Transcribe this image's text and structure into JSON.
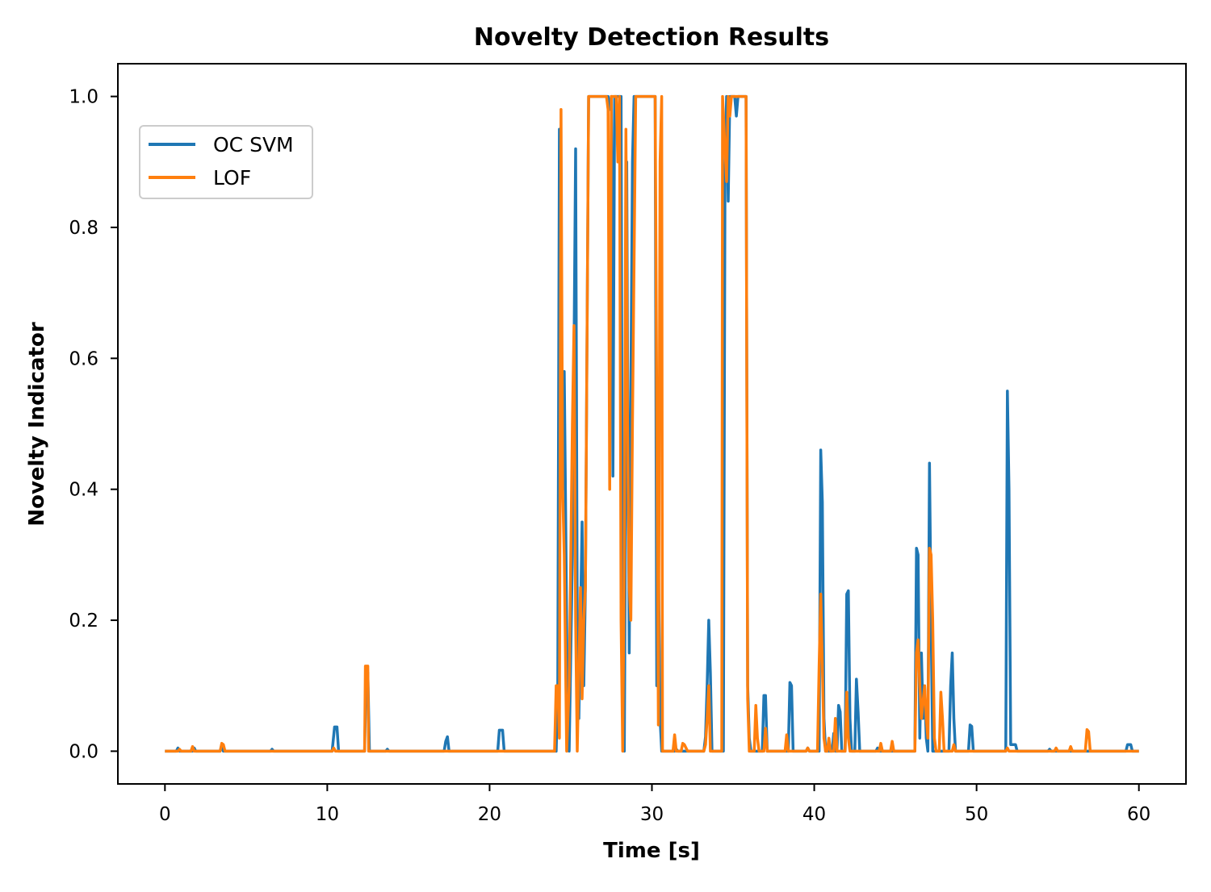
{
  "chart_data": {
    "type": "line",
    "title": "Novelty Detection Results",
    "xlabel": "Time [s]",
    "ylabel": "Novelty Indicator",
    "xlim": [
      -2.9,
      62.9
    ],
    "ylim": [
      -0.05,
      1.05
    ],
    "xticks": [
      0,
      10,
      20,
      30,
      40,
      50,
      60
    ],
    "yticks": [
      0.0,
      0.2,
      0.4,
      0.6,
      0.8,
      1.0
    ],
    "xtick_labels": [
      "0",
      "10",
      "20",
      "30",
      "40",
      "50",
      "60"
    ],
    "ytick_labels": [
      "0.0",
      "0.2",
      "0.4",
      "0.6",
      "0.8",
      "1.0"
    ],
    "grid": false,
    "legend_position": "upper-left",
    "series": [
      {
        "name": "OC SVM",
        "color": "#1f77b4",
        "points": [
          [
            0,
            0
          ],
          [
            0.7,
            0
          ],
          [
            0.8,
            0.005
          ],
          [
            0.9,
            0
          ],
          [
            1.7,
            0
          ],
          [
            1.8,
            0.005
          ],
          [
            1.9,
            0
          ],
          [
            3.4,
            0
          ],
          [
            3.5,
            0.01
          ],
          [
            3.6,
            0
          ],
          [
            6.5,
            0
          ],
          [
            6.6,
            0.003
          ],
          [
            6.7,
            0
          ],
          [
            10.3,
            0
          ],
          [
            10.45,
            0.037
          ],
          [
            10.6,
            0.037
          ],
          [
            10.7,
            0
          ],
          [
            12.3,
            0
          ],
          [
            12.4,
            0.12
          ],
          [
            12.5,
            0.12
          ],
          [
            12.6,
            0
          ],
          [
            13.6,
            0
          ],
          [
            13.7,
            0.003
          ],
          [
            13.8,
            0
          ],
          [
            17.2,
            0
          ],
          [
            17.3,
            0.015
          ],
          [
            17.4,
            0.022
          ],
          [
            17.5,
            0
          ],
          [
            20.5,
            0
          ],
          [
            20.6,
            0.032
          ],
          [
            20.8,
            0.032
          ],
          [
            20.9,
            0
          ],
          [
            24.1,
            0
          ],
          [
            24.2,
            0.1
          ],
          [
            24.3,
            0.95
          ],
          [
            24.5,
            0.4
          ],
          [
            24.6,
            0.58
          ],
          [
            24.7,
            0.33
          ],
          [
            24.8,
            0.05
          ],
          [
            24.9,
            0
          ],
          [
            25.1,
            0.3
          ],
          [
            25.3,
            0.92
          ],
          [
            25.4,
            0.2
          ],
          [
            25.5,
            0.05
          ],
          [
            25.6,
            0.2
          ],
          [
            25.7,
            0.35
          ],
          [
            25.8,
            0.1
          ],
          [
            25.9,
            0.25
          ],
          [
            26.1,
            1
          ],
          [
            27.3,
            1
          ],
          [
            27.4,
            0.98
          ],
          [
            27.5,
            1
          ],
          [
            27.6,
            0.42
          ],
          [
            27.7,
            1
          ],
          [
            28.1,
            1
          ],
          [
            28.2,
            0.05
          ],
          [
            28.3,
            0
          ],
          [
            28.4,
            0.5
          ],
          [
            28.45,
            0.9
          ],
          [
            28.5,
            0.6
          ],
          [
            28.6,
            0.15
          ],
          [
            28.7,
            0.55
          ],
          [
            28.8,
            0.9
          ],
          [
            28.9,
            1
          ],
          [
            30.2,
            1
          ],
          [
            30.3,
            0.1
          ],
          [
            30.4,
            0.3
          ],
          [
            30.5,
            0.05
          ],
          [
            30.6,
            0
          ],
          [
            31.4,
            0
          ],
          [
            31.5,
            0.003
          ],
          [
            31.6,
            0
          ],
          [
            33.2,
            0
          ],
          [
            33.3,
            0.022
          ],
          [
            33.4,
            0.1
          ],
          [
            33.5,
            0.2
          ],
          [
            33.6,
            0.12
          ],
          [
            33.7,
            0
          ],
          [
            34.4,
            0
          ],
          [
            34.5,
            0.88
          ],
          [
            34.6,
            1
          ],
          [
            34.7,
            0.84
          ],
          [
            34.8,
            1
          ],
          [
            35.1,
            1
          ],
          [
            35.2,
            0.97
          ],
          [
            35.3,
            1
          ],
          [
            35.8,
            1
          ],
          [
            35.9,
            0.1
          ],
          [
            36.0,
            0.02
          ],
          [
            36.1,
            0
          ],
          [
            36.8,
            0
          ],
          [
            36.9,
            0.085
          ],
          [
            37.0,
            0.085
          ],
          [
            37.1,
            0
          ],
          [
            38.4,
            0
          ],
          [
            38.5,
            0.105
          ],
          [
            38.6,
            0.1
          ],
          [
            38.7,
            0
          ],
          [
            39.5,
            0
          ],
          [
            39.6,
            0.005
          ],
          [
            39.7,
            0
          ],
          [
            40.3,
            0
          ],
          [
            40.4,
            0.46
          ],
          [
            40.5,
            0.38
          ],
          [
            40.6,
            0.05
          ],
          [
            40.7,
            0
          ],
          [
            41.1,
            0
          ],
          [
            41.2,
            0.027
          ],
          [
            41.3,
            0
          ],
          [
            41.4,
            0
          ],
          [
            41.5,
            0.07
          ],
          [
            41.6,
            0.06
          ],
          [
            41.7,
            0
          ],
          [
            41.9,
            0
          ],
          [
            42.0,
            0.24
          ],
          [
            42.1,
            0.245
          ],
          [
            42.2,
            0.05
          ],
          [
            42.3,
            0
          ],
          [
            42.5,
            0
          ],
          [
            42.6,
            0.11
          ],
          [
            42.7,
            0.06
          ],
          [
            42.8,
            0
          ],
          [
            43.8,
            0
          ],
          [
            43.9,
            0.005
          ],
          [
            44.0,
            0
          ],
          [
            46.2,
            0
          ],
          [
            46.3,
            0.31
          ],
          [
            46.4,
            0.3
          ],
          [
            46.5,
            0.02
          ],
          [
            46.6,
            0.15
          ],
          [
            46.7,
            0.05
          ],
          [
            46.8,
            0.1
          ],
          [
            46.9,
            0.02
          ],
          [
            47.0,
            0
          ],
          [
            47.1,
            0.44
          ],
          [
            47.2,
            0.2
          ],
          [
            47.3,
            0
          ],
          [
            48.3,
            0
          ],
          [
            48.4,
            0.1
          ],
          [
            48.5,
            0.15
          ],
          [
            48.6,
            0.05
          ],
          [
            48.7,
            0
          ],
          [
            49.5,
            0
          ],
          [
            49.6,
            0.04
          ],
          [
            49.7,
            0.038
          ],
          [
            49.8,
            0
          ],
          [
            51.8,
            0
          ],
          [
            51.9,
            0.55
          ],
          [
            52.0,
            0.4
          ],
          [
            52.1,
            0.01
          ],
          [
            52.4,
            0.01
          ],
          [
            52.5,
            0
          ],
          [
            54.4,
            0
          ],
          [
            54.5,
            0.003
          ],
          [
            54.6,
            0
          ],
          [
            59.2,
            0
          ],
          [
            59.3,
            0.01
          ],
          [
            59.5,
            0.01
          ],
          [
            59.6,
            0
          ],
          [
            60,
            0
          ]
        ]
      },
      {
        "name": "LOF",
        "color": "#ff7f0e",
        "points": [
          [
            0,
            0
          ],
          [
            0.8,
            0
          ],
          [
            0.9,
            0.003
          ],
          [
            1.0,
            0
          ],
          [
            1.6,
            0
          ],
          [
            1.7,
            0.007
          ],
          [
            1.8,
            0
          ],
          [
            3.4,
            0
          ],
          [
            3.5,
            0.012
          ],
          [
            3.6,
            0.01
          ],
          [
            3.7,
            0
          ],
          [
            10.3,
            0
          ],
          [
            10.4,
            0.005
          ],
          [
            10.5,
            0
          ],
          [
            12.3,
            0
          ],
          [
            12.35,
            0.13
          ],
          [
            12.5,
            0.13
          ],
          [
            12.55,
            0
          ],
          [
            24.0,
            0
          ],
          [
            24.1,
            0.1
          ],
          [
            24.2,
            0.1
          ],
          [
            24.3,
            0.02
          ],
          [
            24.4,
            0.98
          ],
          [
            24.5,
            0.4
          ],
          [
            24.6,
            0.3
          ],
          [
            24.75,
            0
          ],
          [
            24.9,
            0.1
          ],
          [
            25.1,
            0.5
          ],
          [
            25.2,
            0.65
          ],
          [
            25.3,
            0.2
          ],
          [
            25.4,
            0
          ],
          [
            25.6,
            0.25
          ],
          [
            25.7,
            0.08
          ],
          [
            25.8,
            0.2
          ],
          [
            25.9,
            0.25
          ],
          [
            26.1,
            1
          ],
          [
            27.2,
            1
          ],
          [
            27.3,
            0.98
          ],
          [
            27.4,
            0.4
          ],
          [
            27.5,
            1
          ],
          [
            27.8,
            1
          ],
          [
            27.9,
            0.9
          ],
          [
            28.0,
            1
          ],
          [
            28.1,
            0.2
          ],
          [
            28.2,
            0
          ],
          [
            28.3,
            0.3
          ],
          [
            28.4,
            0.95
          ],
          [
            28.5,
            0.5
          ],
          [
            28.6,
            0.25
          ],
          [
            28.7,
            0.2
          ],
          [
            28.8,
            0.5
          ],
          [
            29.0,
            1
          ],
          [
            30.2,
            1
          ],
          [
            30.4,
            0.04
          ],
          [
            30.5,
            0.9
          ],
          [
            30.6,
            1
          ],
          [
            30.65,
            0
          ],
          [
            31.3,
            0
          ],
          [
            31.4,
            0.025
          ],
          [
            31.5,
            0
          ],
          [
            31.8,
            0
          ],
          [
            31.9,
            0.012
          ],
          [
            32.0,
            0.01
          ],
          [
            32.2,
            0
          ],
          [
            33.2,
            0
          ],
          [
            33.3,
            0.01
          ],
          [
            33.4,
            0.05
          ],
          [
            33.5,
            0.1
          ],
          [
            33.6,
            0
          ],
          [
            34.3,
            0
          ],
          [
            34.35,
            1
          ],
          [
            34.6,
            0.87
          ],
          [
            34.7,
            1
          ],
          [
            34.8,
            0.97
          ],
          [
            34.9,
            1
          ],
          [
            35.8,
            1
          ],
          [
            35.9,
            0.08
          ],
          [
            36.0,
            0
          ],
          [
            36.3,
            0
          ],
          [
            36.4,
            0.07
          ],
          [
            36.5,
            0.02
          ],
          [
            36.6,
            0
          ],
          [
            36.9,
            0
          ],
          [
            37.0,
            0.035
          ],
          [
            37.1,
            0
          ],
          [
            38.2,
            0
          ],
          [
            38.3,
            0.025
          ],
          [
            38.4,
            0
          ],
          [
            39.5,
            0
          ],
          [
            39.6,
            0.005
          ],
          [
            39.7,
            0
          ],
          [
            40.2,
            0
          ],
          [
            40.3,
            0.13
          ],
          [
            40.4,
            0.24
          ],
          [
            40.5,
            0.13
          ],
          [
            40.6,
            0.02
          ],
          [
            40.7,
            0
          ],
          [
            40.8,
            0
          ],
          [
            40.9,
            0.02
          ],
          [
            41.0,
            0
          ],
          [
            41.2,
            0
          ],
          [
            41.3,
            0.05
          ],
          [
            41.4,
            0
          ],
          [
            41.9,
            0
          ],
          [
            42.0,
            0.09
          ],
          [
            42.1,
            0.02
          ],
          [
            42.2,
            0
          ],
          [
            44.0,
            0
          ],
          [
            44.1,
            0.012
          ],
          [
            44.2,
            0
          ],
          [
            44.7,
            0
          ],
          [
            44.8,
            0.015
          ],
          [
            44.9,
            0
          ],
          [
            46.2,
            0
          ],
          [
            46.3,
            0.15
          ],
          [
            46.4,
            0.17
          ],
          [
            46.5,
            0.1
          ],
          [
            46.6,
            0.05
          ],
          [
            46.8,
            0.1
          ],
          [
            46.9,
            0.05
          ],
          [
            47.0,
            0.02
          ],
          [
            47.1,
            0.31
          ],
          [
            47.2,
            0.3
          ],
          [
            47.3,
            0.2
          ],
          [
            47.4,
            0.02
          ],
          [
            47.5,
            0
          ],
          [
            47.7,
            0
          ],
          [
            47.8,
            0.09
          ],
          [
            47.9,
            0.05
          ],
          [
            48.0,
            0
          ],
          [
            48.5,
            0
          ],
          [
            48.6,
            0.01
          ],
          [
            48.7,
            0
          ],
          [
            51.8,
            0
          ],
          [
            51.9,
            0.005
          ],
          [
            52.0,
            0
          ],
          [
            54.8,
            0
          ],
          [
            54.9,
            0.005
          ],
          [
            55.0,
            0
          ],
          [
            55.7,
            0
          ],
          [
            55.8,
            0.007
          ],
          [
            55.9,
            0
          ],
          [
            56.7,
            0
          ],
          [
            56.8,
            0.033
          ],
          [
            56.9,
            0.03
          ],
          [
            57.0,
            0
          ],
          [
            60,
            0
          ]
        ]
      }
    ]
  }
}
